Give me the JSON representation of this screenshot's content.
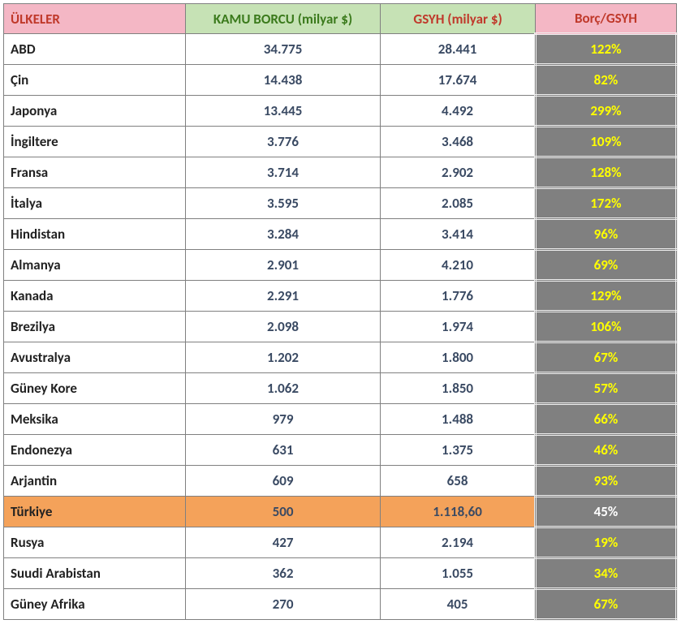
{
  "table": {
    "type": "table",
    "columns": [
      {
        "key": "country",
        "label": "ÜLKELER",
        "header_bg": "#f4b7c5",
        "header_color": "#c0392b",
        "align": "left",
        "width_pct": 27
      },
      {
        "key": "debt",
        "label": "KAMU BORCU (milyar $)",
        "header_bg": "#c6e2b5",
        "header_color": "#3b7a1c",
        "align": "center",
        "width_pct": 29
      },
      {
        "key": "gdp",
        "label": "GSYH (milyar $)",
        "header_bg": "#c6e2b5",
        "header_color": "#c0392b",
        "align": "center",
        "width_pct": 23
      },
      {
        "key": "ratio",
        "label": "Borç/GSYH",
        "header_bg": "#f4b7c5",
        "header_color": "#c0392b",
        "align": "center",
        "width_pct": 21
      }
    ],
    "body_colors": {
      "country_text": "#222222",
      "number_text": "#3a4a63",
      "ratio_bg": "#808080",
      "ratio_text": "#ffff00",
      "highlight_bg": "#f4a25a",
      "highlight_ratio_text": "#ffffff",
      "border_color": "#808080",
      "ratio_inner_border": "#f0f0f0"
    },
    "font": {
      "family": "Calibri",
      "size_pt": 13,
      "weight": "bold"
    },
    "rows": [
      {
        "country": "ABD",
        "debt": "34.775",
        "gdp": "28.441",
        "ratio": "122%"
      },
      {
        "country": "Çin",
        "debt": "14.438",
        "gdp": "17.674",
        "ratio": "82%"
      },
      {
        "country": "Japonya",
        "debt": "13.445",
        "gdp": "4.492",
        "ratio": "299%"
      },
      {
        "country": "İngiltere",
        "debt": "3.776",
        "gdp": "3.468",
        "ratio": "109%"
      },
      {
        "country": "Fransa",
        "debt": "3.714",
        "gdp": "2.902",
        "ratio": "128%"
      },
      {
        "country": "İtalya",
        "debt": "3.595",
        "gdp": "2.085",
        "ratio": "172%"
      },
      {
        "country": "Hindistan",
        "debt": "3.284",
        "gdp": "3.414",
        "ratio": "96%"
      },
      {
        "country": "Almanya",
        "debt": "2.901",
        "gdp": "4.210",
        "ratio": "69%"
      },
      {
        "country": "Kanada",
        "debt": "2.291",
        "gdp": "1.776",
        "ratio": "129%"
      },
      {
        "country": "Brezilya",
        "debt": "2.098",
        "gdp": "1.974",
        "ratio": "106%"
      },
      {
        "country": "Avustralya",
        "debt": "1.202",
        "gdp": "1.800",
        "ratio": "67%"
      },
      {
        "country": "Güney Kore",
        "debt": "1.062",
        "gdp": "1.850",
        "ratio": "57%"
      },
      {
        "country": "Meksika",
        "debt": "979",
        "gdp": "1.488",
        "ratio": "66%"
      },
      {
        "country": "Endonezya",
        "debt": "631",
        "gdp": "1.375",
        "ratio": "46%"
      },
      {
        "country": "Arjantin",
        "debt": "609",
        "gdp": "658",
        "ratio": "93%"
      },
      {
        "country": "Türkiye",
        "debt": "500",
        "gdp": "1.118,60",
        "ratio": "45%",
        "highlight": true
      },
      {
        "country": "Rusya",
        "debt": "427",
        "gdp": "2.194",
        "ratio": "19%"
      },
      {
        "country": "Suudi Arabistan",
        "debt": "362",
        "gdp": "1.055",
        "ratio": "34%"
      },
      {
        "country": "Güney Afrika",
        "debt": "270",
        "gdp": "405",
        "ratio": "67%"
      }
    ]
  }
}
